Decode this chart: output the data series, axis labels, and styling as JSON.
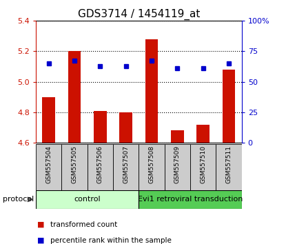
{
  "title": "GDS3714 / 1454119_at",
  "samples": [
    "GSM557504",
    "GSM557505",
    "GSM557506",
    "GSM557507",
    "GSM557508",
    "GSM557509",
    "GSM557510",
    "GSM557511"
  ],
  "transformed_counts": [
    4.9,
    5.2,
    4.81,
    4.8,
    5.28,
    4.68,
    4.72,
    5.08
  ],
  "percentile_ranks": [
    65,
    67,
    63,
    63,
    67,
    61,
    61,
    65
  ],
  "ylim_left": [
    4.6,
    5.4
  ],
  "ylim_right": [
    0,
    100
  ],
  "yticks_left": [
    4.6,
    4.8,
    5.0,
    5.2,
    5.4
  ],
  "yticks_right": [
    0,
    25,
    50,
    75,
    100
  ],
  "bar_color": "#cc1100",
  "dot_color": "#0000cc",
  "bar_baseline": 4.6,
  "groups": [
    {
      "label": "control",
      "start": 0,
      "end": 4,
      "color": "#ccffcc"
    },
    {
      "label": "Evi1 retroviral transduction",
      "start": 4,
      "end": 8,
      "color": "#55cc55"
    }
  ],
  "protocol_label": "protocol",
  "legend_items": [
    {
      "label": "transformed count",
      "color": "#cc1100"
    },
    {
      "label": "percentile rank within the sample",
      "color": "#0000cc"
    }
  ],
  "grid_color": "#000000",
  "bg_color": "#ffffff",
  "plot_bg_color": "#ffffff",
  "label_area_bg": "#cccccc",
  "right_tick_color": "#0000cc",
  "left_tick_color": "#cc1100",
  "title_fontsize": 11,
  "tick_fontsize": 8,
  "bar_width": 0.5
}
